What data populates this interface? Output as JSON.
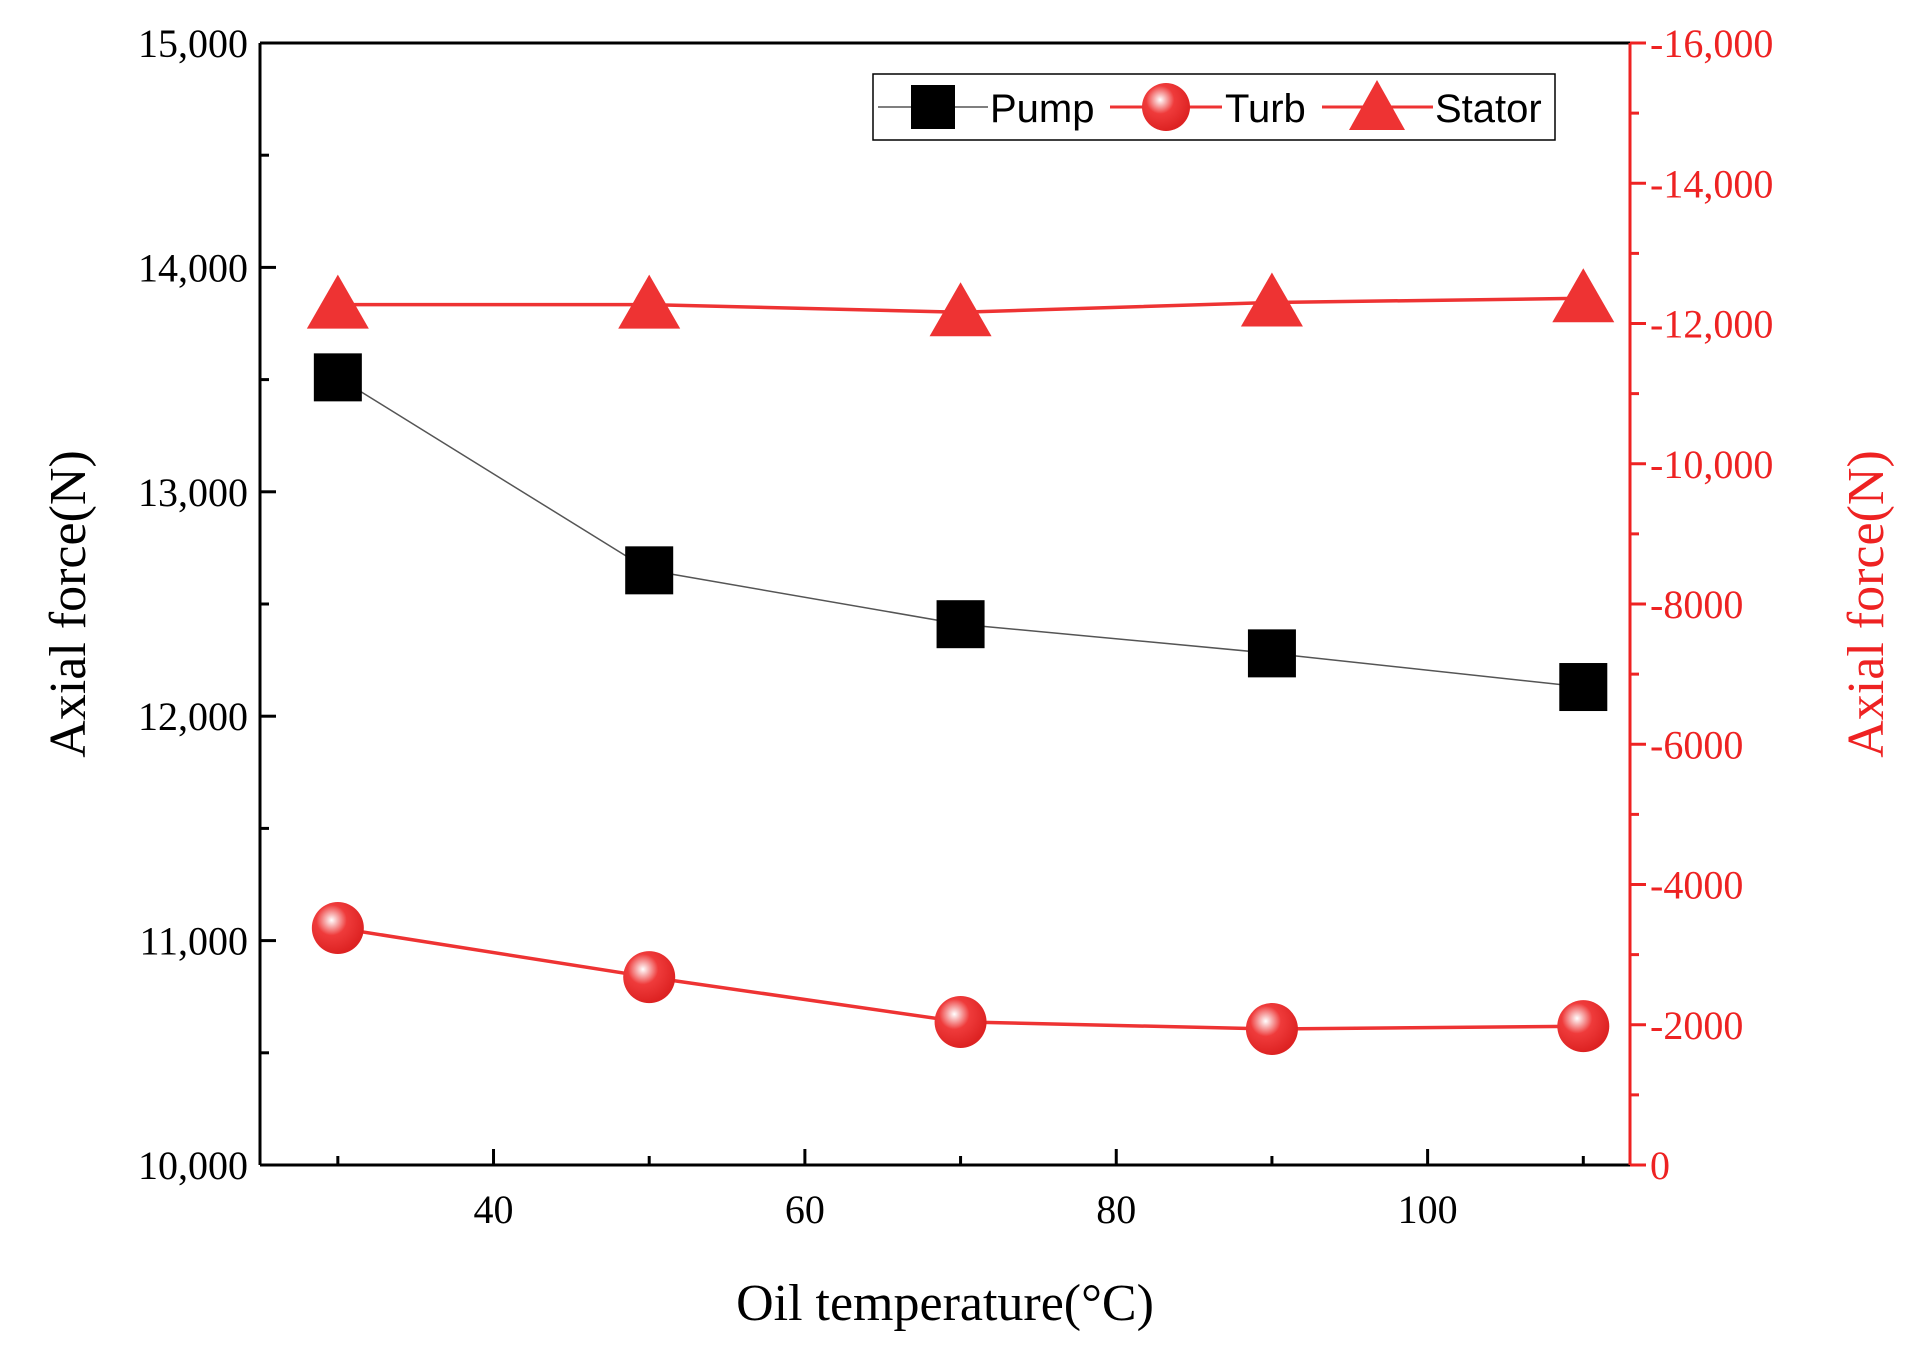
{
  "chart_data": {
    "type": "line",
    "title": "",
    "xlabel": "Oil temperature(°C)",
    "ylabel_left": "Axial force(N)",
    "ylabel_right": "Axial force(N)",
    "x": [
      30,
      50,
      70,
      90,
      110
    ],
    "xlim": [
      25,
      113
    ],
    "x_ticks": [
      40,
      60,
      80,
      100
    ],
    "x_tick_labels": [
      "40",
      "60",
      "80",
      "100"
    ],
    "ylim_left": [
      10000,
      15000
    ],
    "y_left_ticks": [
      10000,
      11000,
      12000,
      13000,
      14000,
      15000
    ],
    "y_left_tick_labels": [
      "10,000",
      "11,000",
      "12,000",
      "13,000",
      "14,000",
      "15,000"
    ],
    "ylim_right": [
      0,
      -16000
    ],
    "y_right_ticks": [
      0,
      -2000,
      -4000,
      -6000,
      -8000,
      -10000,
      -12000,
      -14000,
      -16000
    ],
    "y_right_tick_labels": [
      "0",
      "-2000",
      "-4000",
      "-6000",
      "-8000",
      "-10,000",
      "-12,000",
      "-14,000",
      "-16,000"
    ],
    "grid": false,
    "legend_position": "top-right",
    "series": [
      {
        "name": "Pump",
        "axis": "left",
        "marker": "square",
        "color": "#000000",
        "line_color": "#555555",
        "values": [
          13510,
          12650,
          12410,
          12280,
          12130
        ]
      },
      {
        "name": "Turb",
        "axis": "right",
        "marker": "sphere",
        "color": "#ee3333",
        "line_color": "#ee3333",
        "values": [
          -3380,
          -2680,
          -2040,
          -1940,
          -1980
        ]
      },
      {
        "name": "Stator",
        "axis": "right",
        "marker": "triangle",
        "color": "#ee3333",
        "line_color": "#ee3333",
        "values": [
          -12270,
          -12270,
          -12160,
          -12300,
          -12360
        ]
      }
    ]
  }
}
